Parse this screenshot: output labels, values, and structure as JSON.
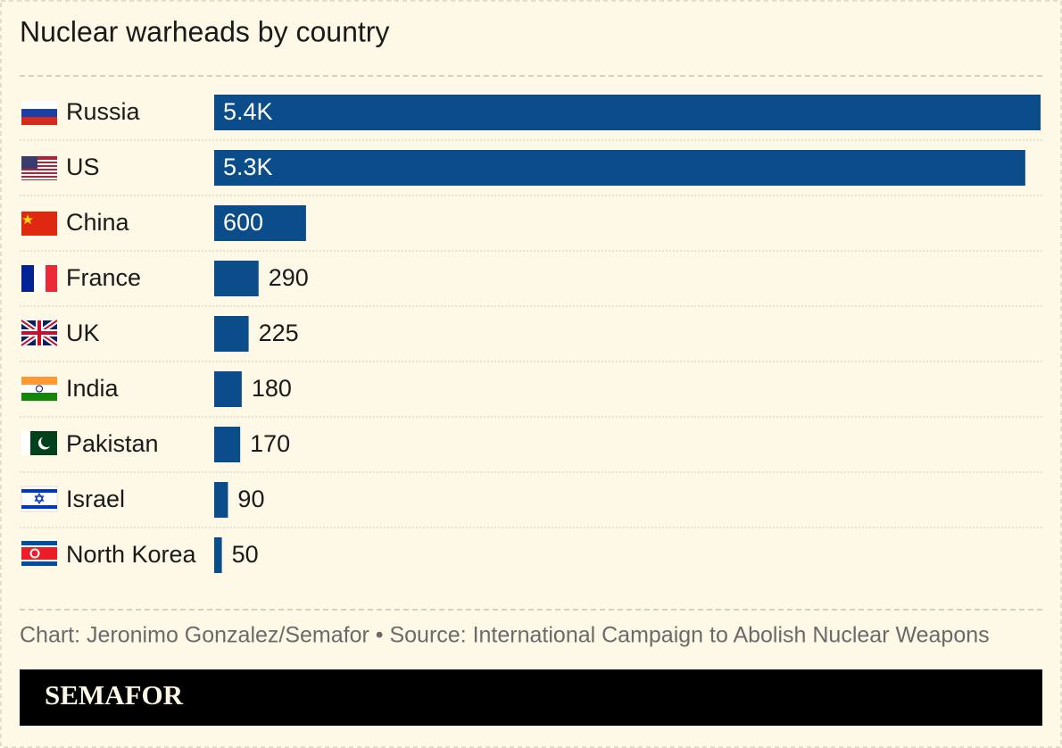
{
  "chart_data": {
    "type": "bar",
    "orientation": "horizontal",
    "title": "Nuclear warheads by country",
    "categories": [
      "Russia",
      "US",
      "China",
      "France",
      "UK",
      "India",
      "Pakistan",
      "Israel",
      "North Korea"
    ],
    "values": [
      5400,
      5300,
      600,
      290,
      225,
      180,
      170,
      90,
      50
    ],
    "value_labels": [
      "5.4K",
      "5.3K",
      "600",
      "290",
      "225",
      "180",
      "170",
      "90",
      "50"
    ],
    "color": "#0b4c8b",
    "source": "Chart: Jeronimo Gonzalez/Semafor • Source: International Campaign to Abolish Nuclear Weapons",
    "brand": "SEMAFOR"
  }
}
